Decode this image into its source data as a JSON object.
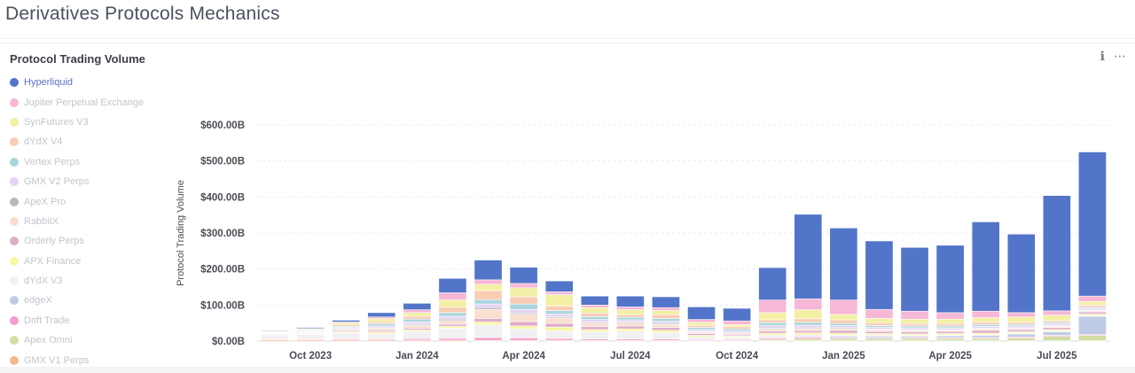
{
  "page": {
    "title": "Derivatives Protocols Mechanics"
  },
  "card": {
    "title": "Protocol Trading Volume",
    "info_icon": "info-icon",
    "more_icon": "more-options-icon"
  },
  "legend": {
    "items": [
      {
        "label": "Hyperliquid",
        "color": "#5275c9",
        "active": true
      },
      {
        "label": "Jupiter Perpetual Exchange",
        "color": "#f7b7d6",
        "active": false
      },
      {
        "label": "SynFutures V3",
        "color": "#f3f0a6",
        "active": false
      },
      {
        "label": "dYdX V4",
        "color": "#f8cdb4",
        "active": false
      },
      {
        "label": "Vertex Perps",
        "color": "#a9d5dc",
        "active": false
      },
      {
        "label": "GMX V2 Perps",
        "color": "#e4d4f4",
        "active": false
      },
      {
        "label": "ApeX Pro",
        "color": "#b8b8bd",
        "active": false
      },
      {
        "label": "RabbitX",
        "color": "#f8dfd0",
        "active": false
      },
      {
        "label": "Orderly Perps",
        "color": "#dfadc8",
        "active": false
      },
      {
        "label": "APX Finance",
        "color": "#f8f6a0",
        "active": false
      },
      {
        "label": "dYdX V3",
        "color": "#f1f0f2",
        "active": false
      },
      {
        "label": "edgeX",
        "color": "#bfcbe5",
        "active": false
      },
      {
        "label": "Drift Trade",
        "color": "#f49ccd",
        "active": false
      },
      {
        "label": "Apex Omni",
        "color": "#d2dca3",
        "active": false
      },
      {
        "label": "GMX V1 Perps",
        "color": "#f4b890",
        "active": false
      }
    ]
  },
  "chart_data": {
    "type": "bar",
    "stacked": true,
    "ylabel": "Protocol Trading Volume",
    "ylim": [
      0,
      600
    ],
    "yticks": [
      0,
      100,
      200,
      300,
      400,
      500,
      600
    ],
    "ytick_labels": [
      "$0.00B",
      "$100.00B",
      "$200.00B",
      "$300.00B",
      "$400.00B",
      "$500.00B",
      "$600.00B"
    ],
    "x_tick_labels": [
      {
        "label": "Oct 2023",
        "index": 1
      },
      {
        "label": "Jan 2024",
        "index": 4
      },
      {
        "label": "Apr 2024",
        "index": 7
      },
      {
        "label": "Jul 2024",
        "index": 10
      },
      {
        "label": "Oct 2024",
        "index": 13
      },
      {
        "label": "Jan 2025",
        "index": 16
      },
      {
        "label": "Apr 2025",
        "index": 19
      },
      {
        "label": "Jul 2025",
        "index": 22
      }
    ],
    "categories": [
      "Sep 2023",
      "Oct 2023",
      "Nov 2023",
      "Dec 2023",
      "Jan 2024",
      "Feb 2024",
      "Mar 2024",
      "Apr 2024",
      "May 2024",
      "Jun 2024",
      "Jul 2024",
      "Aug 2024",
      "Sep 2024",
      "Oct 2024",
      "Nov 2024",
      "Dec 2024",
      "Jan 2025",
      "Feb 2025",
      "Mar 2025",
      "Apr 2025",
      "May 2025",
      "Jun 2025",
      "Jul 2025",
      "Aug 2025"
    ],
    "series": [
      {
        "name": "Hyperliquid",
        "values": [
          2,
          3,
          5,
          12,
          18,
          40,
          55,
          45,
          30,
          25,
          30,
          30,
          35,
          35,
          90,
          235,
          200,
          190,
          177,
          187,
          248,
          218,
          320,
          400
        ]
      },
      {
        "name": "Jupiter Perpetual Exchange",
        "values": [
          1,
          1,
          3,
          5,
          8,
          20,
          12,
          12,
          8,
          7,
          8,
          8,
          8,
          10,
          35,
          30,
          40,
          25,
          22,
          18,
          18,
          12,
          12,
          15
        ]
      },
      {
        "name": "SynFutures V3",
        "values": [
          2,
          3,
          5,
          8,
          10,
          20,
          18,
          25,
          32,
          15,
          13,
          12,
          8,
          6,
          20,
          25,
          15,
          12,
          12,
          12,
          12,
          15,
          15,
          10
        ]
      },
      {
        "name": "dYdX V4",
        "values": [
          1,
          2,
          4,
          6,
          8,
          15,
          25,
          20,
          12,
          10,
          8,
          10,
          6,
          6,
          8,
          10,
          10,
          8,
          7,
          7,
          7,
          6,
          5,
          6
        ]
      },
      {
        "name": "Vertex Perps",
        "values": [
          1,
          2,
          3,
          6,
          8,
          10,
          12,
          15,
          10,
          8,
          7,
          8,
          6,
          5,
          8,
          8,
          6,
          5,
          5,
          5,
          5,
          4,
          4,
          3
        ]
      },
      {
        "name": "GMX V2 Perps",
        "values": [
          2,
          2,
          3,
          5,
          6,
          8,
          10,
          10,
          8,
          7,
          6,
          6,
          5,
          5,
          7,
          7,
          6,
          5,
          5,
          5,
          5,
          5,
          5,
          5
        ]
      },
      {
        "name": "ApeX Pro",
        "values": [
          1,
          1,
          2,
          2,
          3,
          4,
          5,
          4,
          3,
          3,
          3,
          3,
          2,
          2,
          3,
          3,
          3,
          2,
          2,
          2,
          2,
          2,
          2,
          2
        ]
      },
      {
        "name": "RabbitX",
        "values": [
          1,
          2,
          3,
          6,
          8,
          10,
          25,
          20,
          15,
          10,
          8,
          8,
          4,
          3,
          5,
          5,
          4,
          4,
          4,
          3,
          4,
          3,
          3,
          3
        ]
      },
      {
        "name": "Orderly Perps",
        "values": [
          2,
          2,
          3,
          4,
          5,
          6,
          10,
          12,
          10,
          8,
          8,
          8,
          5,
          4,
          6,
          6,
          8,
          6,
          6,
          6,
          8,
          6,
          6,
          6
        ]
      },
      {
        "name": "APX Finance",
        "values": [
          1,
          2,
          3,
          4,
          4,
          5,
          8,
          8,
          10,
          6,
          6,
          6,
          4,
          3,
          5,
          5,
          5,
          4,
          4,
          4,
          4,
          4,
          4,
          4
        ]
      },
      {
        "name": "dYdX V3",
        "values": [
          10,
          12,
          18,
          15,
          20,
          28,
          35,
          25,
          22,
          20,
          22,
          18,
          8,
          6,
          6,
          4,
          3,
          3,
          2,
          2,
          2,
          2,
          2,
          2
        ]
      },
      {
        "name": "edgeX",
        "values": [
          0,
          0,
          0,
          0,
          0,
          0,
          0,
          0,
          0,
          0,
          0,
          0,
          0,
          0,
          2,
          3,
          4,
          4,
          4,
          5,
          6,
          8,
          10,
          50
        ]
      },
      {
        "name": "Drift Trade",
        "values": [
          1,
          2,
          3,
          3,
          4,
          5,
          8,
          7,
          5,
          4,
          4,
          4,
          3,
          3,
          4,
          4,
          3,
          3,
          3,
          3,
          3,
          3,
          3,
          3
        ]
      },
      {
        "name": "Apex Omni",
        "values": [
          0,
          0,
          0,
          0,
          0,
          0,
          0,
          0,
          0,
          0,
          0,
          0,
          0,
          2,
          4,
          6,
          6,
          6,
          6,
          6,
          6,
          8,
          12,
          15
        ]
      },
      {
        "name": "GMX V1 Perps",
        "values": [
          4,
          4,
          3,
          3,
          3,
          3,
          2,
          2,
          2,
          2,
          2,
          2,
          1,
          1,
          1,
          1,
          1,
          1,
          1,
          1,
          1,
          1,
          1,
          1
        ]
      }
    ]
  }
}
